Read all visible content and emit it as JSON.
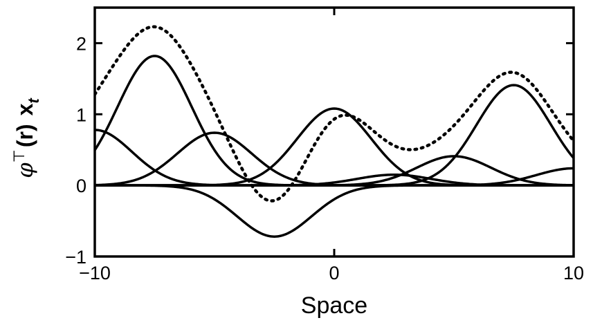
{
  "chart_data": {
    "type": "line",
    "title": "",
    "xlabel": "Space",
    "ylabel": {
      "phi": "φ",
      "transpose": "⊤",
      "r": "(r)",
      "x": "x",
      "sub": "t"
    },
    "xlim": [
      -10,
      10
    ],
    "ylim": [
      -1,
      2.5
    ],
    "xticks": [
      -10,
      0,
      10
    ],
    "xtick_labels": [
      "−10",
      "0",
      "10"
    ],
    "yticks": [
      -1,
      0,
      1,
      2
    ],
    "ytick_labels": [
      "−1",
      "0",
      "1",
      "2"
    ],
    "grid": false,
    "legend": "none",
    "basis_width": 1.55,
    "x_sample_range": [
      -10,
      10
    ],
    "x_sample_count": 401,
    "series": [
      {
        "center": -10,
        "amplitude": 0.78,
        "style": "solid"
      },
      {
        "center": -7.5,
        "amplitude": 1.82,
        "style": "solid"
      },
      {
        "center": -5,
        "amplitude": 0.74,
        "style": "solid"
      },
      {
        "center": -2.5,
        "amplitude": -0.72,
        "style": "solid"
      },
      {
        "center": 0,
        "amplitude": 1.08,
        "style": "solid"
      },
      {
        "center": 2.5,
        "amplitude": 0.15,
        "style": "solid"
      },
      {
        "center": 5,
        "amplitude": 0.41,
        "style": "solid"
      },
      {
        "center": 7.5,
        "amplitude": 1.41,
        "style": "solid"
      },
      {
        "center": 10,
        "amplitude": 0.24,
        "style": "solid"
      }
    ],
    "sum_series_style": "dotted",
    "colors": {
      "line": "#000000",
      "background": "#ffffff"
    }
  }
}
